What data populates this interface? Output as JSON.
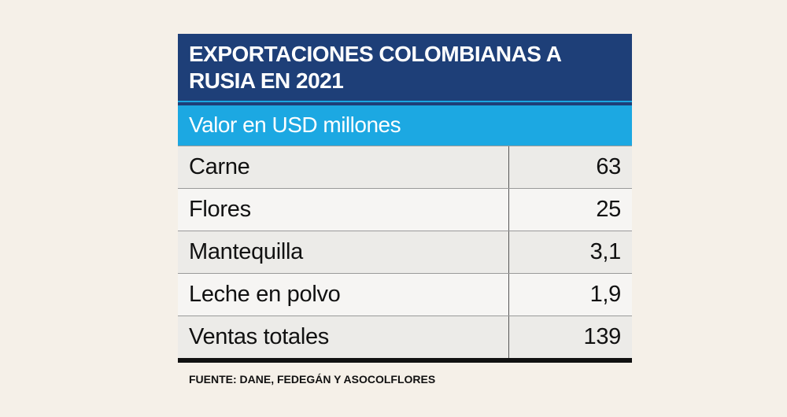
{
  "header": {
    "title": "EXPORTACIONES COLOMBIANAS A RUSIA EN 2021",
    "subtitle": "Valor en USD millones"
  },
  "table": {
    "rows": [
      [
        "Carne",
        "63"
      ],
      [
        "Flores",
        "25"
      ],
      [
        "Mantequilla",
        "3,1"
      ],
      [
        "Leche en polvo",
        "1,9"
      ],
      [
        "Ventas totales",
        "139"
      ]
    ]
  },
  "footer": {
    "source": "FUENTE: DANE, FEDEGÁN Y ASOCOLFLORES"
  }
}
